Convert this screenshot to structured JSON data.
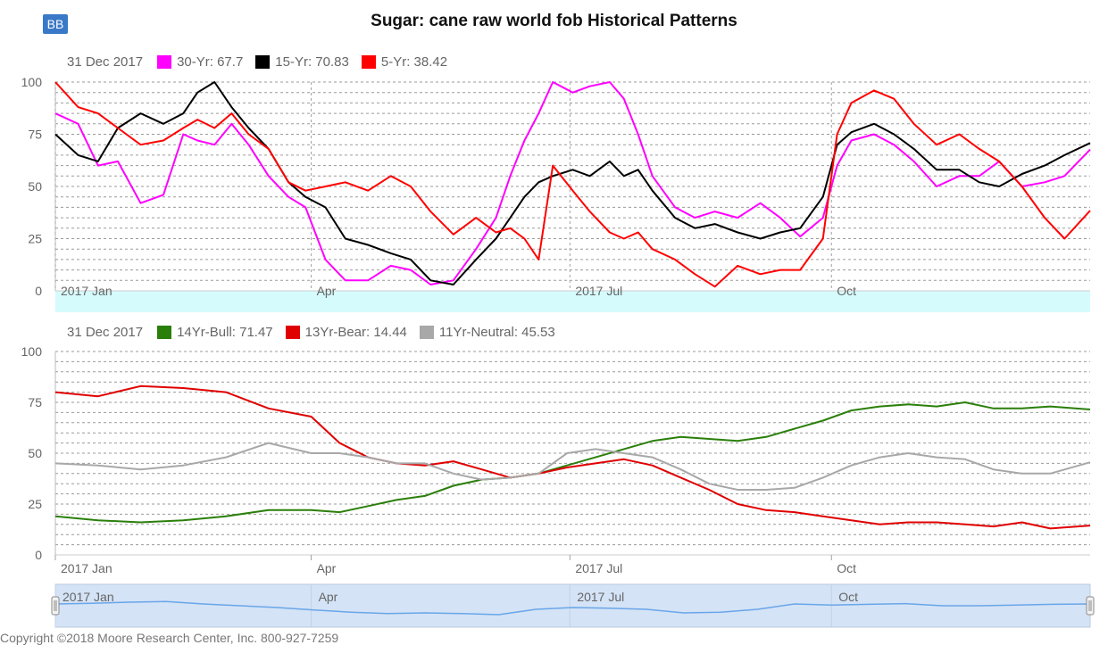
{
  "badge": "BB",
  "title": "Sugar: cane raw world fob Historical Patterns",
  "copyright": "Copyright ©2018 Moore Research Center, Inc. 800-927-7259",
  "panel1": {
    "date": "31 Dec 2017",
    "legend": [
      {
        "label": "30-Yr: 67.7",
        "color": "#ff00ff"
      },
      {
        "label": "15-Yr: 70.83",
        "color": "#000000"
      },
      {
        "label": "5-Yr: 38.42",
        "color": "#ff0000"
      }
    ]
  },
  "panel2": {
    "date": "31 Dec 2017",
    "legend": [
      {
        "label": "14Yr-Bull: 71.47",
        "color": "#2a7f0a"
      },
      {
        "label": "13Yr-Bear: 14.44",
        "color": "#e00000"
      },
      {
        "label": "11Yr-Neutral: 45.53",
        "color": "#a8a8a8"
      }
    ]
  },
  "chart_data": [
    {
      "type": "line",
      "ylim": [
        0,
        100
      ],
      "yticks": [
        "0",
        "25",
        "50",
        "75",
        "100"
      ],
      "x_ticks": [
        {
          "label": "2017 Jan",
          "day": 0
        },
        {
          "label": "Apr",
          "day": 90
        },
        {
          "label": "2017 Jul",
          "day": 181
        },
        {
          "label": "Oct",
          "day": 273
        }
      ],
      "x_range_days": [
        0,
        364
      ],
      "series": [
        {
          "name": "30-Yr",
          "color": "#ff00ff",
          "x": [
            0,
            8,
            15,
            22,
            30,
            38,
            45,
            50,
            56,
            62,
            68,
            75,
            82,
            88,
            95,
            102,
            110,
            118,
            125,
            132,
            140,
            148,
            155,
            160,
            165,
            170,
            175,
            182,
            188,
            195,
            200,
            205,
            210,
            218,
            225,
            232,
            240,
            248,
            255,
            262,
            270,
            275,
            280,
            288,
            295,
            302,
            310,
            318,
            325,
            332,
            340,
            348,
            355,
            364
          ],
          "y": [
            85,
            80,
            60,
            62,
            42,
            46,
            75,
            72,
            70,
            80,
            70,
            55,
            45,
            40,
            15,
            5,
            5,
            12,
            10,
            3,
            5,
            20,
            35,
            55,
            72,
            85,
            100,
            95,
            98,
            100,
            92,
            75,
            55,
            40,
            35,
            38,
            35,
            42,
            35,
            26,
            35,
            60,
            72,
            75,
            70,
            62,
            50,
            55,
            55,
            62,
            50,
            52,
            55,
            67.7
          ]
        },
        {
          "name": "15-Yr",
          "color": "#000000",
          "x": [
            0,
            8,
            15,
            22,
            30,
            38,
            45,
            50,
            56,
            62,
            68,
            75,
            82,
            88,
            95,
            102,
            110,
            118,
            125,
            132,
            140,
            148,
            155,
            160,
            165,
            170,
            175,
            182,
            188,
            195,
            200,
            205,
            210,
            218,
            225,
            232,
            240,
            248,
            255,
            262,
            270,
            275,
            280,
            288,
            295,
            302,
            310,
            318,
            325,
            332,
            340,
            348,
            355,
            364
          ],
          "y": [
            75,
            65,
            62,
            78,
            85,
            80,
            85,
            95,
            100,
            88,
            78,
            68,
            52,
            45,
            40,
            25,
            22,
            18,
            15,
            5,
            3,
            15,
            25,
            35,
            45,
            52,
            55,
            58,
            55,
            62,
            55,
            58,
            48,
            35,
            30,
            32,
            28,
            25,
            28,
            30,
            45,
            70,
            76,
            80,
            75,
            68,
            58,
            58,
            52,
            50,
            56,
            60,
            65,
            70.83
          ]
        },
        {
          "name": "5-Yr",
          "color": "#ff0000",
          "x": [
            0,
            8,
            15,
            22,
            30,
            38,
            45,
            50,
            56,
            62,
            68,
            75,
            82,
            88,
            95,
            102,
            110,
            118,
            125,
            132,
            140,
            148,
            155,
            160,
            165,
            170,
            175,
            182,
            188,
            195,
            200,
            205,
            210,
            218,
            225,
            232,
            240,
            248,
            255,
            262,
            270,
            275,
            280,
            288,
            295,
            302,
            310,
            318,
            325,
            332,
            340,
            348,
            355,
            364
          ],
          "y": [
            100,
            88,
            85,
            78,
            70,
            72,
            78,
            82,
            78,
            85,
            75,
            68,
            52,
            48,
            50,
            52,
            48,
            55,
            50,
            38,
            27,
            35,
            28,
            30,
            25,
            15,
            60,
            48,
            38,
            28,
            25,
            28,
            20,
            15,
            8,
            2,
            12,
            8,
            10,
            10,
            25,
            75,
            90,
            96,
            92,
            80,
            70,
            75,
            68,
            62,
            50,
            35,
            25,
            38.42
          ]
        }
      ]
    },
    {
      "type": "line",
      "ylim": [
        0,
        100
      ],
      "yticks": [
        "0",
        "25",
        "50",
        "75",
        "100"
      ],
      "x_ticks": [
        {
          "label": "2017 Jan",
          "day": 0
        },
        {
          "label": "Apr",
          "day": 90
        },
        {
          "label": "2017 Jul",
          "day": 181
        },
        {
          "label": "Oct",
          "day": 273
        }
      ],
      "x_range_days": [
        0,
        364
      ],
      "series": [
        {
          "name": "14Yr-Bull",
          "color": "#2a7f0a",
          "x": [
            0,
            15,
            30,
            45,
            60,
            75,
            90,
            100,
            110,
            120,
            130,
            140,
            150,
            160,
            170,
            180,
            190,
            200,
            210,
            220,
            230,
            240,
            250,
            260,
            270,
            280,
            290,
            300,
            310,
            320,
            330,
            340,
            350,
            364
          ],
          "y": [
            19,
            17,
            16,
            17,
            19,
            22,
            22,
            21,
            24,
            27,
            29,
            34,
            37,
            38,
            40,
            44,
            48,
            52,
            56,
            58,
            57,
            56,
            58,
            62,
            66,
            71,
            73,
            74,
            73,
            75,
            72,
            72,
            73,
            71.47
          ]
        },
        {
          "name": "13Yr-Bear",
          "color": "#e00000",
          "x": [
            0,
            15,
            30,
            45,
            60,
            75,
            90,
            100,
            110,
            120,
            130,
            140,
            150,
            160,
            170,
            180,
            190,
            200,
            210,
            220,
            230,
            240,
            250,
            260,
            270,
            280,
            290,
            300,
            310,
            320,
            330,
            340,
            350,
            364
          ],
          "y": [
            80,
            78,
            83,
            82,
            80,
            72,
            68,
            55,
            48,
            45,
            44,
            46,
            42,
            38,
            40,
            43,
            45,
            47,
            44,
            38,
            32,
            25,
            22,
            21,
            19,
            17,
            15,
            16,
            16,
            15,
            14,
            16,
            13,
            14.44
          ]
        },
        {
          "name": "11Yr-Neutral",
          "color": "#a8a8a8",
          "x": [
            0,
            15,
            30,
            45,
            60,
            75,
            90,
            100,
            110,
            120,
            130,
            140,
            150,
            160,
            170,
            180,
            190,
            200,
            210,
            220,
            230,
            240,
            250,
            260,
            270,
            280,
            290,
            300,
            310,
            320,
            330,
            340,
            350,
            364
          ],
          "y": [
            45,
            44,
            42,
            44,
            48,
            55,
            50,
            50,
            48,
            45,
            45,
            40,
            37,
            38,
            40,
            50,
            52,
            50,
            48,
            42,
            35,
            32,
            32,
            33,
            38,
            44,
            48,
            50,
            48,
            47,
            42,
            40,
            40,
            45.53
          ]
        }
      ]
    }
  ],
  "navigator": {
    "labels": [
      "2017 Jan",
      "Apr",
      "2017 Jul",
      "Oct"
    ],
    "color": "#6aa6e8",
    "fill": "#d4e3f6",
    "line": [
      55,
      57,
      60,
      62,
      55,
      50,
      45,
      38,
      32,
      28,
      30,
      28,
      25,
      40,
      45,
      43,
      40,
      30,
      32,
      40,
      55,
      52,
      54,
      56,
      50,
      50,
      52,
      54,
      55
    ]
  }
}
